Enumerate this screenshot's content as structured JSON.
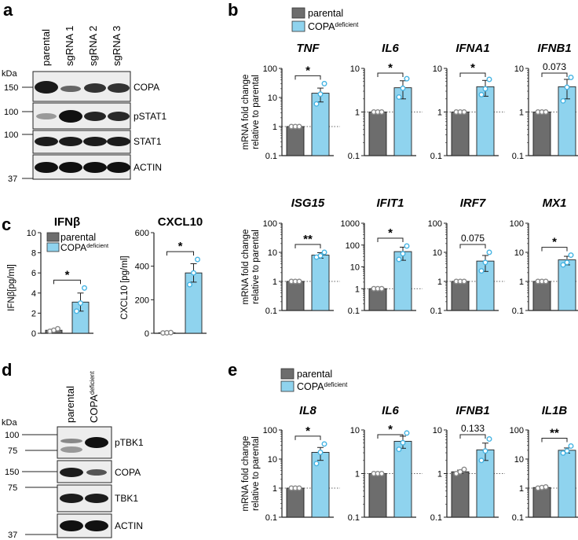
{
  "panels": {
    "a": "a",
    "b": "b",
    "c": "c",
    "d": "d",
    "e": "e"
  },
  "colors": {
    "parental": "#6d6d6d",
    "copa_deficient": "#8fd3ee",
    "dot_parental": "#8a8a8a",
    "dot_copa": "#46b4e3"
  },
  "legend": {
    "parental": "parental",
    "copa_main": "COPA",
    "copa_sup": "deficient"
  },
  "blot_a": {
    "kda_label": "kDa",
    "lanes": [
      "parental",
      "sgRNA 1",
      "sgRNA 2",
      "sgRNA 3"
    ],
    "markers": [
      "150",
      "100",
      "100",
      "37"
    ],
    "proteins": [
      "COPA",
      "pSTAT1",
      "STAT1",
      "ACTIN"
    ]
  },
  "blot_d": {
    "kda_label": "kDa",
    "lanes": [
      "parental",
      "COPA",
      "deficient"
    ],
    "markers": [
      "100",
      "75",
      "150",
      "75",
      "37"
    ],
    "proteins": [
      "pTBK1",
      "COPA",
      "TBK1",
      "ACTIN"
    ]
  },
  "chart_data": [
    {
      "panel": "b",
      "type": "bar",
      "ylabel": "mRNA fold change relative to parental",
      "ylabel_lines": [
        "mRNA fold change",
        "relative to parental"
      ],
      "yscale": "log",
      "categories": [
        "parental",
        "COPA deficient"
      ],
      "subplots": [
        {
          "title": "TNF",
          "ylim": [
            0.1,
            100
          ],
          "ticks": [
            "0.1",
            "1",
            "10",
            "100"
          ],
          "values": [
            1,
            14
          ],
          "sem": [
            0,
            7
          ],
          "points": [
            [
              1,
              1,
              1
            ],
            [
              6,
              13,
              30
            ]
          ],
          "sig": "*"
        },
        {
          "title": "IL6",
          "ylim": [
            0.1,
            10
          ],
          "ticks": [
            "0.1",
            "1",
            "10"
          ],
          "values": [
            1,
            3.6
          ],
          "sem": [
            0,
            1.6
          ],
          "points": [
            [
              1,
              1,
              1
            ],
            [
              2.2,
              3.5,
              5.8
            ]
          ],
          "sig": "*"
        },
        {
          "title": "IFNA1",
          "ylim": [
            0.1,
            10
          ],
          "ticks": [
            "0.1",
            "1",
            "10"
          ],
          "values": [
            1,
            3.8
          ],
          "sem": [
            0,
            1.5
          ],
          "points": [
            [
              1,
              1,
              1
            ],
            [
              2.5,
              3.4,
              5.6
            ]
          ],
          "sig": "*"
        },
        {
          "title": "IFNB1",
          "ylim": [
            0.1,
            10
          ],
          "ticks": [
            "0.1",
            "1",
            "10"
          ],
          "values": [
            1,
            3.8
          ],
          "sem": [
            0,
            1.8
          ],
          "points": [
            [
              1,
              1,
              1
            ],
            [
              1.8,
              3.7,
              6.2
            ]
          ],
          "sig": "0.073"
        },
        {
          "title": "ISG15",
          "ylim": [
            0.1,
            100
          ],
          "ticks": [
            "0.1",
            "1",
            "10",
            "100"
          ],
          "values": [
            1,
            8
          ],
          "sem": [
            0,
            1.7
          ],
          "points": [
            [
              1,
              1,
              1
            ],
            [
              6.8,
              7.6,
              10
            ]
          ],
          "sig": "**"
        },
        {
          "title": "IFIT1",
          "ylim": [
            0.1,
            1000
          ],
          "ticks": [
            "0.1",
            "1",
            "10",
            "100",
            "1000"
          ],
          "values": [
            1,
            50
          ],
          "sem": [
            0,
            30
          ],
          "points": [
            [
              1,
              1,
              1
            ],
            [
              22,
              40,
              90
            ]
          ],
          "sig": "*"
        },
        {
          "title": "IRF7",
          "ylim": [
            0.1,
            100
          ],
          "ticks": [
            "0.1",
            "1",
            "10",
            "100"
          ],
          "values": [
            1,
            5
          ],
          "sem": [
            0,
            2.8
          ],
          "points": [
            [
              1,
              1,
              1
            ],
            [
              2.3,
              4.5,
              10
            ]
          ],
          "sig": "0.075"
        },
        {
          "title": "MX1",
          "ylim": [
            0.1,
            100
          ],
          "ticks": [
            "0.1",
            "1",
            "10",
            "100"
          ],
          "values": [
            1,
            5.5
          ],
          "sem": [
            0,
            1.8
          ],
          "points": [
            [
              1,
              1,
              1
            ],
            [
              3.7,
              4.5,
              8
            ]
          ],
          "sig": "*"
        }
      ]
    },
    {
      "panel": "c",
      "type": "bar",
      "yscale": "linear",
      "categories": [
        "parental",
        "COPA deficient"
      ],
      "subplots": [
        {
          "title": "IFNβ",
          "ylabel": "IFNβ[pg/ml]",
          "ylim": [
            0,
            10
          ],
          "ticks": [
            "0",
            "2",
            "4",
            "6",
            "8",
            "10"
          ],
          "values": [
            0.3,
            3.1
          ],
          "sem": [
            0.1,
            0.9
          ],
          "points": [
            [
              0.2,
              0.3,
              0.45
            ],
            [
              2.2,
              3.0,
              4.5
            ]
          ],
          "sig": "*"
        },
        {
          "title": "CXCL10",
          "ylabel": "CXCL10 [pg/ml]",
          "ylim": [
            0,
            600
          ],
          "ticks": [
            "0",
            "200",
            "400",
            "600"
          ],
          "values": [
            3,
            360
          ],
          "sem": [
            1,
            55
          ],
          "points": [
            [
              2,
              3,
              4
            ],
            [
              290,
              360,
              440
            ]
          ],
          "sig": "*"
        }
      ]
    },
    {
      "panel": "e",
      "type": "bar",
      "ylabel": "mRNA fold change relative to parental",
      "ylabel_lines": [
        "mRNA fold change",
        "relative to parental"
      ],
      "yscale": "log",
      "categories": [
        "parental",
        "COPA deficient"
      ],
      "subplots": [
        {
          "title": "IL8",
          "ylim": [
            0.1,
            100
          ],
          "ticks": [
            "0.1",
            "1",
            "10",
            "100"
          ],
          "values": [
            1,
            17
          ],
          "sem": [
            0,
            8
          ],
          "points": [
            [
              1,
              1,
              1
            ],
            [
              7,
              17,
              33
            ]
          ],
          "sig": "*"
        },
        {
          "title": "IL6",
          "ylim": [
            0.1,
            10
          ],
          "ticks": [
            "0.1",
            "1",
            "10"
          ],
          "values": [
            1,
            5.5
          ],
          "sem": [
            0,
            1.7
          ],
          "points": [
            [
              1,
              1,
              1
            ],
            [
              3.6,
              5.1,
              8.5
            ]
          ],
          "sig": "*"
        },
        {
          "title": "IFNB1",
          "ylim": [
            0.1,
            10
          ],
          "ticks": [
            "0.1",
            "1",
            "10"
          ],
          "values": [
            1.1,
            3.5
          ],
          "sem": [
            0.1,
            1.5
          ],
          "points": [
            [
              1.0,
              1.1,
              1.25
            ],
            [
              2.0,
              3.3,
              6.2
            ]
          ],
          "sig": "0.133"
        },
        {
          "title": "IL1B",
          "ylim": [
            0.1,
            100
          ],
          "ticks": [
            "0.1",
            "1",
            "10",
            "100"
          ],
          "values": [
            1.05,
            20
          ],
          "sem": [
            0.05,
            4
          ],
          "points": [
            [
              1,
              1.05,
              1.1
            ],
            [
              16,
              19,
              28
            ]
          ],
          "sig": "**"
        }
      ]
    }
  ]
}
